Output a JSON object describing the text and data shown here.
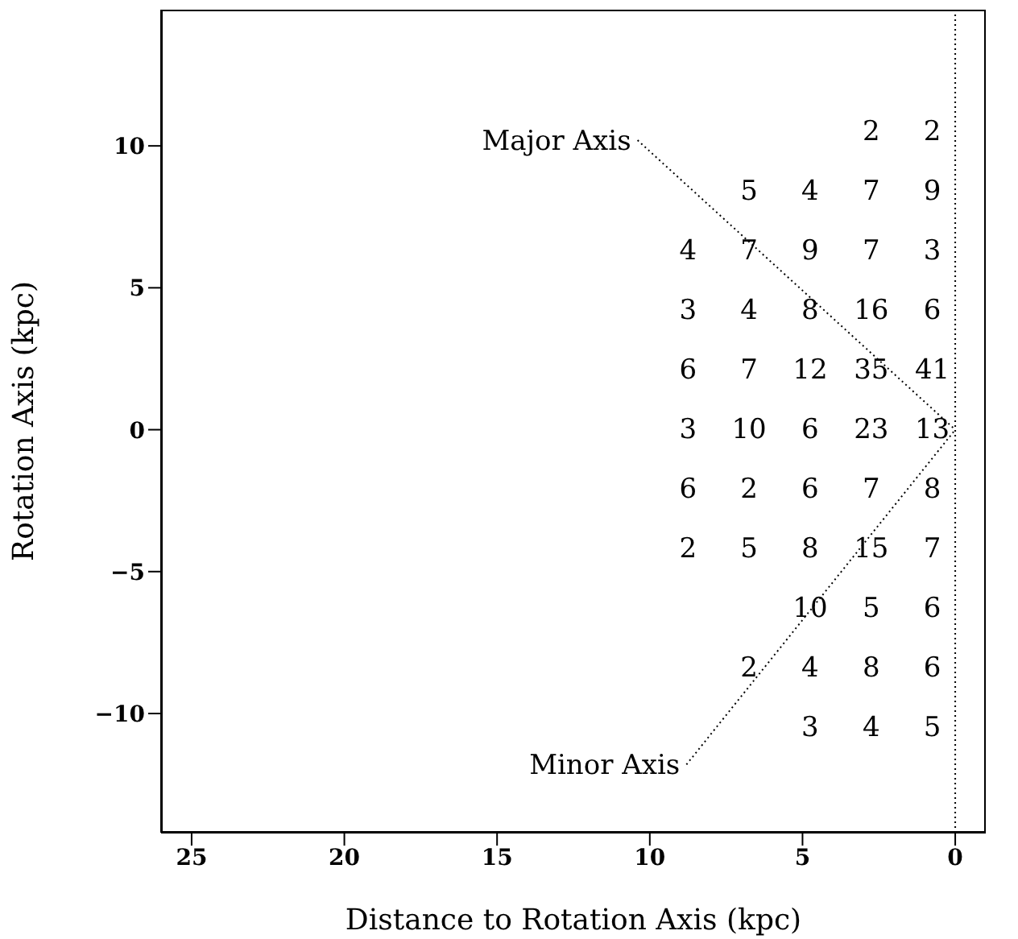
{
  "chart_data": {
    "type": "heatmap",
    "xlabel": "Distance to Rotation Axis (kpc)",
    "ylabel": "Rotation Axis (kpc)",
    "xlim": [
      26,
      -1
    ],
    "xticks": [
      25,
      20,
      15,
      10,
      5,
      0
    ],
    "ylim": [
      -14.2,
      14.8
    ],
    "yticks": [
      -10,
      -5,
      0,
      5,
      10
    ],
    "grid": false,
    "legend": false,
    "data_labels": true,
    "x": [
      8.75,
      6.75,
      4.75,
      2.75,
      0.75
    ],
    "y": [
      10.5,
      8.4,
      6.3,
      4.2,
      2.1,
      0,
      -2.1,
      -4.2,
      -6.3,
      -8.4,
      -10.5
    ],
    "cells": [
      [
        null,
        null,
        null,
        2,
        2
      ],
      [
        null,
        5,
        4,
        7,
        9
      ],
      [
        4,
        7,
        9,
        7,
        3
      ],
      [
        3,
        4,
        8,
        16,
        6
      ],
      [
        6,
        7,
        12,
        35,
        41
      ],
      [
        3,
        10,
        6,
        23,
        13
      ],
      [
        6,
        2,
        6,
        7,
        8
      ],
      [
        2,
        5,
        8,
        15,
        7
      ],
      [
        null,
        null,
        10,
        5,
        6
      ],
      [
        null,
        2,
        4,
        8,
        6
      ],
      [
        null,
        null,
        3,
        4,
        5
      ]
    ],
    "series": [
      {
        "type": "line",
        "color": "#000000",
        "line_style": "dotted",
        "x": [
          10.4,
          0
        ],
        "values": [
          10.2,
          0
        ],
        "value_labels": [
          null,
          null
        ]
      },
      {
        "type": "line",
        "color": "#000000",
        "line_style": "dotted",
        "x": [
          8.8,
          0
        ],
        "values": [
          -11.8,
          0
        ],
        "value_labels": [
          null,
          null
        ]
      }
    ],
    "ref_lines": [
      {
        "axis": "x",
        "value": 0,
        "color": "#000000",
        "line_style": "dotted"
      }
    ],
    "annotations": [
      {
        "text": "Major Axis",
        "x": 10.4,
        "y": 10.2
      },
      {
        "text": "Minor Axis",
        "x": 8.8,
        "y": -11.8
      }
    ]
  }
}
